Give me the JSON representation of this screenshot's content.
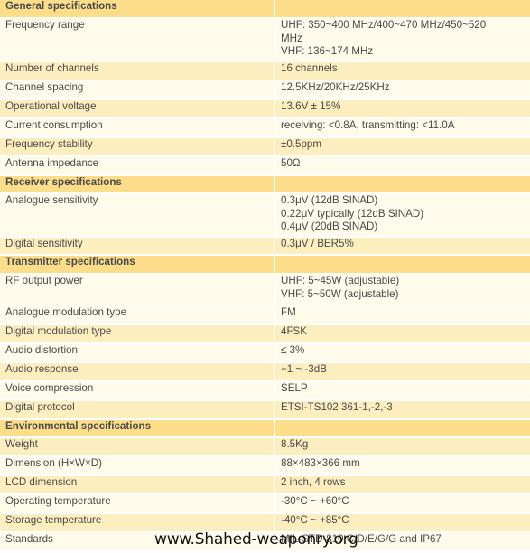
{
  "rows": [
    {
      "type": "section",
      "label": "General specifications"
    },
    {
      "type": "row",
      "alt": false,
      "label": "Frequency range",
      "values": [
        "UHF: 350~400 MHz/400~470 MHz/450~520",
        "MHz",
        "VHF: 136~174 MHz"
      ]
    },
    {
      "type": "row",
      "alt": true,
      "label": "Number of channels",
      "values": [
        "16 channels"
      ]
    },
    {
      "type": "row",
      "alt": false,
      "label": "Channel spacing",
      "values": [
        "12.5KHz/20KHz/25KHz"
      ]
    },
    {
      "type": "row",
      "alt": true,
      "label": "Operational voltage",
      "values": [
        "13.6V ± 15%"
      ]
    },
    {
      "type": "row",
      "alt": false,
      "label": "Current consumption",
      "values": [
        "receiving: <0.8A, transmitting: <11.0A"
      ]
    },
    {
      "type": "row",
      "alt": true,
      "label": "Frequency stability",
      "values": [
        "±0.5ppm"
      ]
    },
    {
      "type": "row",
      "alt": false,
      "label": "Antenna impedance",
      "values": [
        "50Ω"
      ]
    },
    {
      "type": "section",
      "label": "Receiver specifications"
    },
    {
      "type": "row",
      "alt": false,
      "label": "Analogue sensitivity",
      "values": [
        "0.3μV (12dB SINAD)",
        "0.22μV typically (12dB SINAD)",
        "0.4μV (20dB SINAD)"
      ]
    },
    {
      "type": "row",
      "alt": true,
      "label": "Digital sensitivity",
      "values": [
        "0.3μV / BER5%"
      ]
    },
    {
      "type": "section",
      "label": "Transmitter specifications"
    },
    {
      "type": "row",
      "alt": false,
      "label": "RF output power",
      "values": [
        "UHF: 5~45W (adjustable)",
        "VHF: 5~50W (adjustable)"
      ]
    },
    {
      "type": "row",
      "alt": false,
      "label": "Analogue modulation type",
      "values": [
        "FM"
      ]
    },
    {
      "type": "row",
      "alt": true,
      "label": "Digital modulation type",
      "values": [
        "4FSK"
      ]
    },
    {
      "type": "row",
      "alt": false,
      "label": "Audio distortion",
      "values": [
        "≤ 3%"
      ]
    },
    {
      "type": "row",
      "alt": true,
      "label": "Audio response",
      "values": [
        "+1 ~ -3dB"
      ]
    },
    {
      "type": "row",
      "alt": false,
      "label": "Voice compression",
      "values": [
        "SELP"
      ]
    },
    {
      "type": "row",
      "alt": true,
      "label": "Digital protocol",
      "values": [
        "ETSI-TS102 361-1,-2,-3"
      ]
    },
    {
      "type": "section",
      "label": "Environmental specifications"
    },
    {
      "type": "row",
      "alt": true,
      "label": "Weight",
      "values": [
        "8.5Kg"
      ]
    },
    {
      "type": "row",
      "alt": false,
      "label": "Dimension (H×W×D)",
      "values": [
        "88×483×366 mm"
      ]
    },
    {
      "type": "row",
      "alt": true,
      "label": "LCD dimension",
      "values": [
        "2 inch, 4 rows"
      ]
    },
    {
      "type": "row",
      "alt": false,
      "label": "Operating temperature",
      "values": [
        "-30°C ~ +60°C"
      ]
    },
    {
      "type": "row",
      "alt": true,
      "label": "Storage temperature",
      "values": [
        "-40°C ~ +85°C"
      ]
    },
    {
      "type": "row",
      "alt": false,
      "label": "Standards",
      "values": [
        "MIL-STD-810 C/D/E/G/G and IP67"
      ]
    }
  ],
  "watermark": "www.Shahed-weaponry.org"
}
